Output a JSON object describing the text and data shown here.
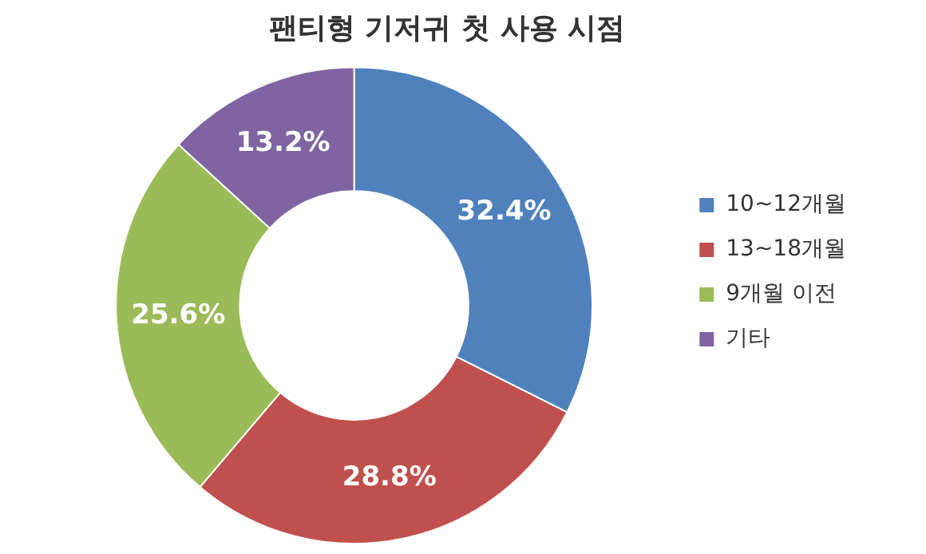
{
  "chart_data": {
    "type": "donut",
    "title": "팬티형 기저귀 첫 사용 시점",
    "categories": [
      "10~12개월",
      "13~18개월",
      "9개월 이전",
      "기타"
    ],
    "values": [
      32.4,
      28.8,
      25.6,
      13.2
    ],
    "colors": [
      "#4f81bd",
      "#c0504d",
      "#9bbb59",
      "#8064a2"
    ],
    "value_labels": [
      "32.4%",
      "28.8%",
      "25.6%",
      "13.2%"
    ],
    "legend": "right"
  }
}
